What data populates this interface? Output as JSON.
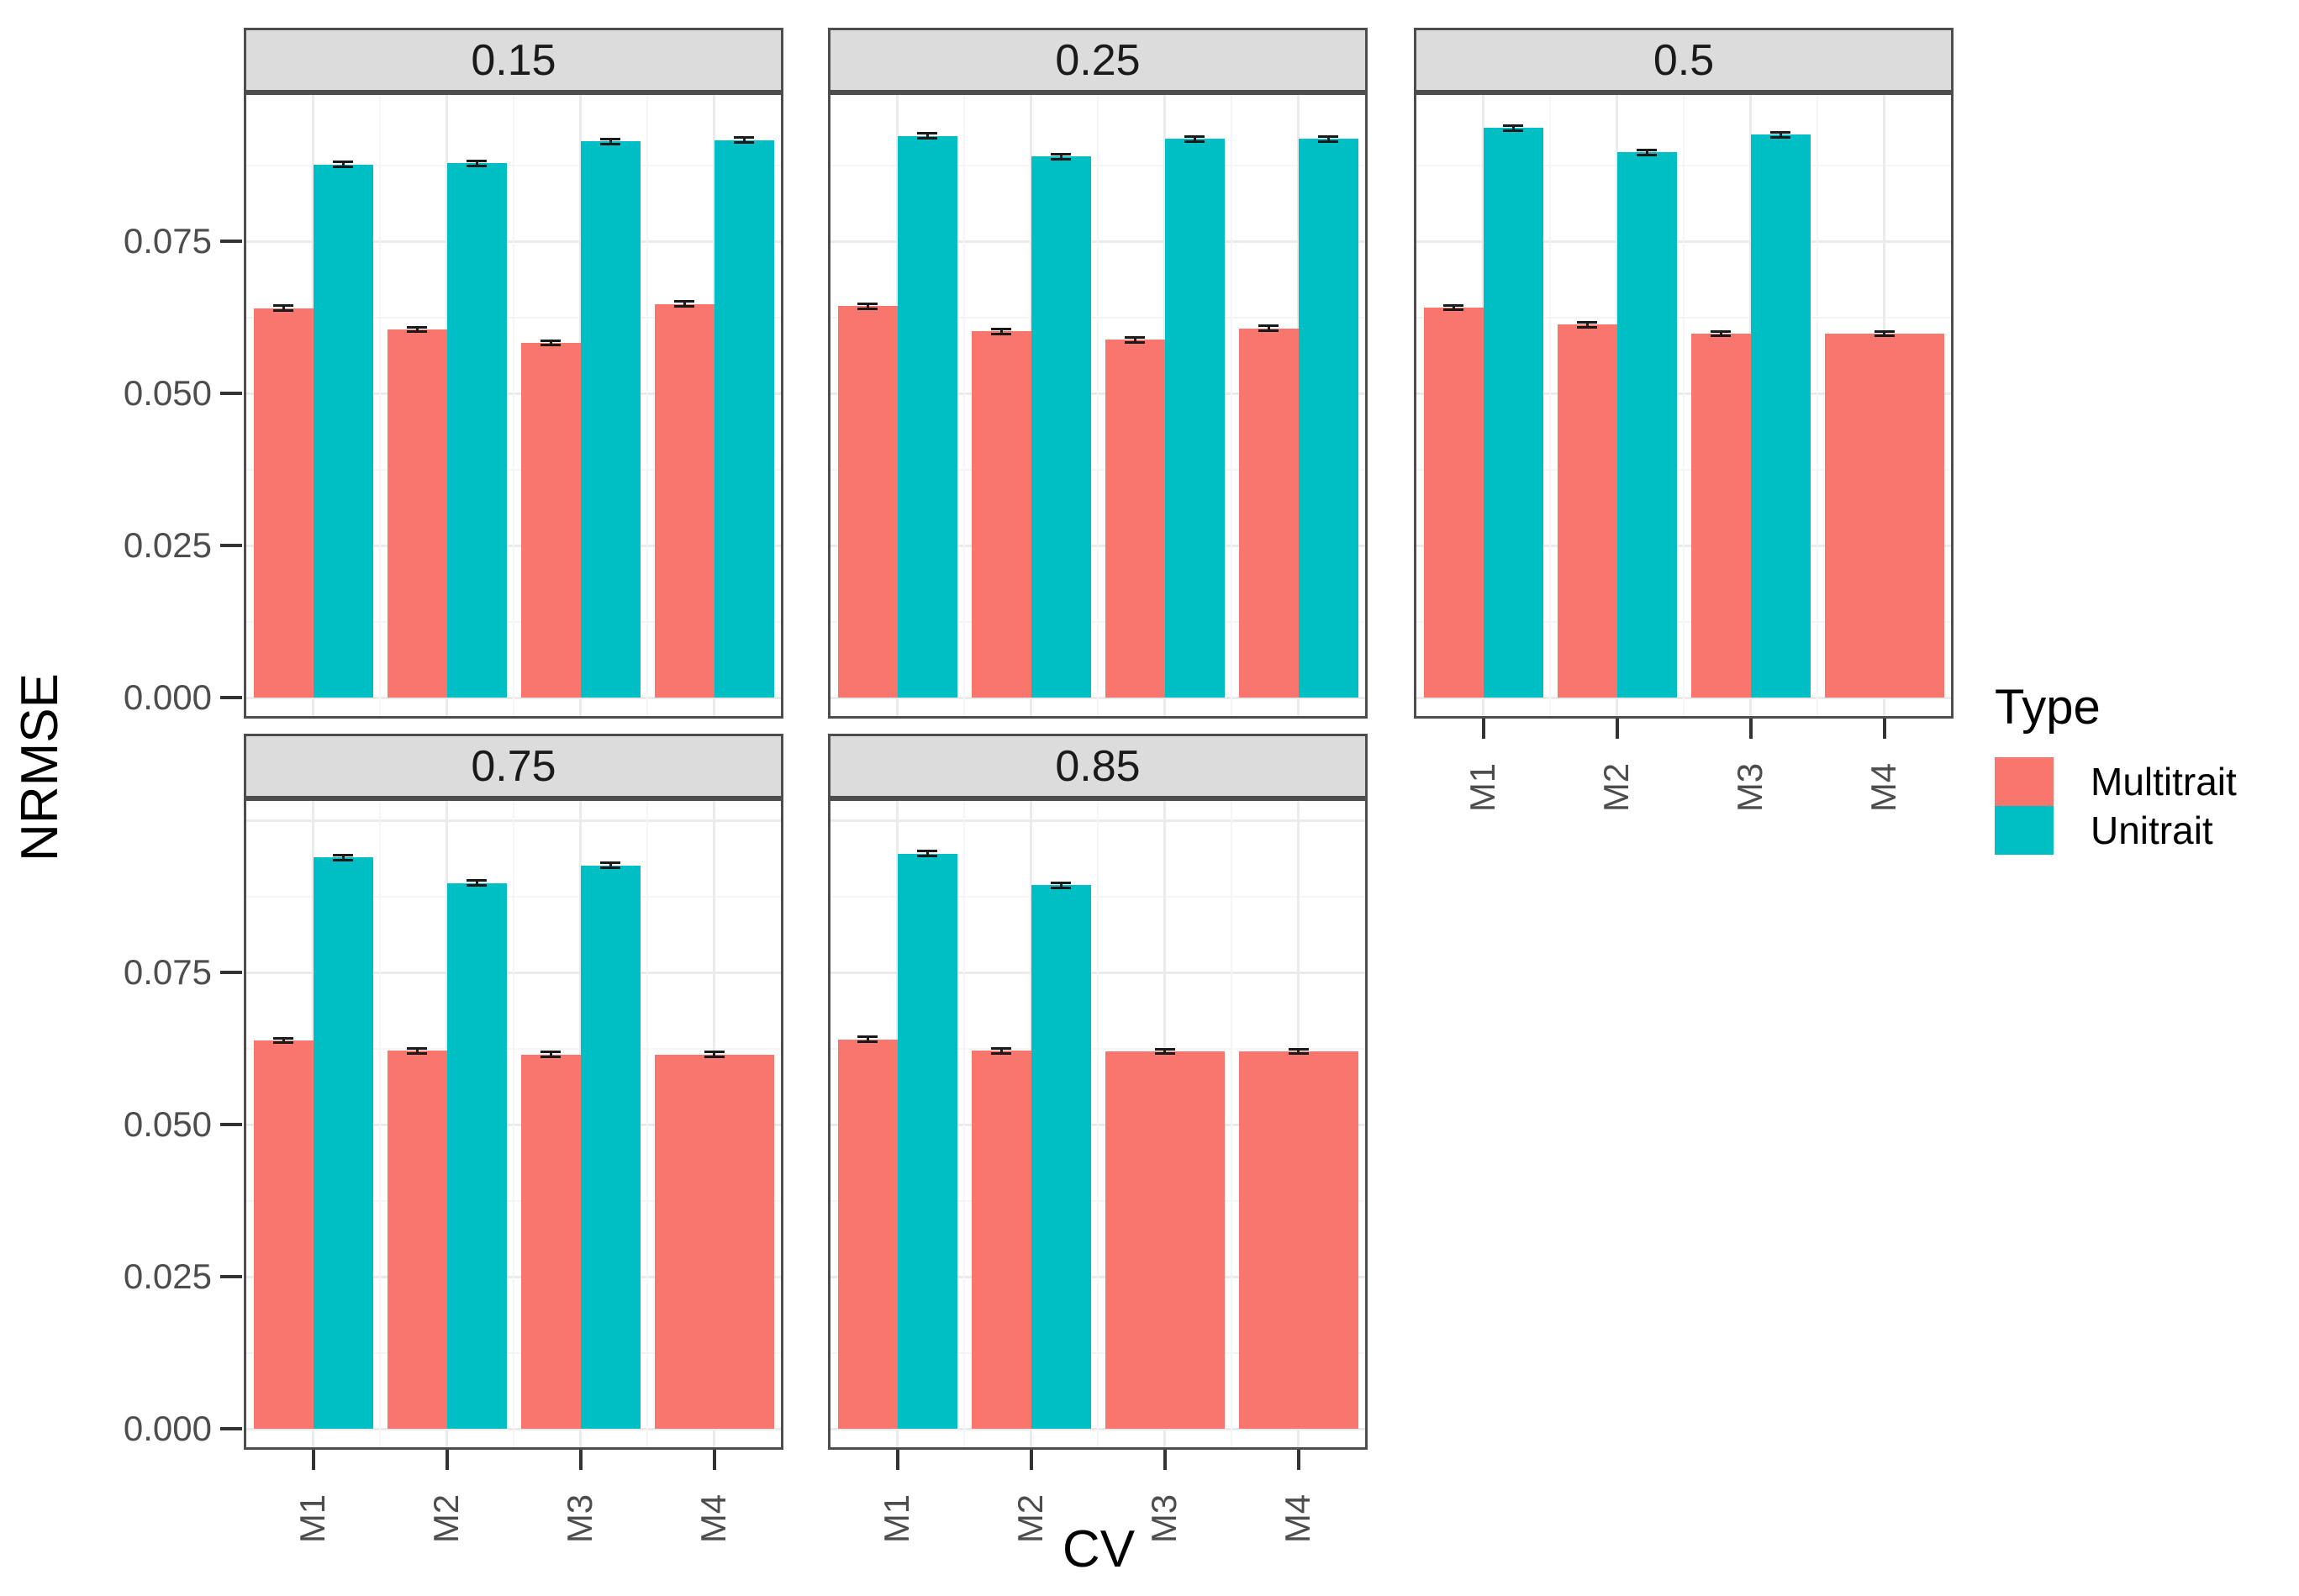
{
  "figure": {
    "y_axis_title": "NRMSE",
    "x_axis_title": "CV",
    "y_tick_labels": [
      "0.000",
      "0.025",
      "0.050",
      "0.075"
    ]
  },
  "legend": {
    "title": "Type",
    "items": [
      {
        "label": "Multitrait",
        "color": "#F8766D"
      },
      {
        "label": "Unitrait",
        "color": "#00BFC4"
      }
    ]
  },
  "chart_data": {
    "type": "bar",
    "title": "",
    "xlabel": "CV",
    "ylabel": "NRMSE",
    "categories": [
      "M1",
      "M2",
      "M3",
      "M4"
    ],
    "series_names": [
      "Multitrait",
      "Unitrait"
    ],
    "colors": {
      "Multitrait": "#F8766D",
      "Unitrait": "#00BFC4"
    },
    "ylim": [
      0,
      0.1
    ],
    "yticks": [
      0,
      0.025,
      0.05,
      0.075
    ],
    "ytick_labels": [
      "0.000",
      "0.025",
      "0.050",
      "0.075"
    ],
    "grid": "major and minor, light grey on white",
    "legend_position": "right",
    "error_bar": 0.0006,
    "facet_labels": [
      "0.15",
      "0.25",
      "0.5",
      "0.75",
      "0.85"
    ],
    "facets": [
      {
        "label": "0.15",
        "row": 0,
        "col": 0,
        "multitrait": [
          0.064,
          0.0605,
          0.0583,
          0.0647
        ],
        "unitrait": [
          0.0876,
          0.0878,
          0.0914,
          0.0916
        ]
      },
      {
        "label": "0.25",
        "row": 0,
        "col": 1,
        "multitrait": [
          0.0643,
          0.0602,
          0.0588,
          0.0607
        ],
        "unitrait": [
          0.0923,
          0.0889,
          0.0918,
          0.0918
        ]
      },
      {
        "label": "0.5",
        "row": 0,
        "col": 2,
        "multitrait": [
          0.0641,
          0.0613,
          0.0598,
          0.0598
        ],
        "unitrait": [
          0.0936,
          0.0896,
          0.0925,
          null
        ]
      },
      {
        "label": "0.75",
        "row": 1,
        "col": 0,
        "multitrait": [
          0.0638,
          0.0621,
          0.0615,
          0.0615
        ],
        "unitrait": [
          0.0939,
          0.0897,
          0.0926,
          null
        ]
      },
      {
        "label": "0.85",
        "row": 1,
        "col": 1,
        "multitrait": [
          0.064,
          0.0621,
          0.062,
          0.062
        ],
        "unitrait": [
          0.0945,
          0.0893,
          null,
          null
        ]
      }
    ]
  }
}
